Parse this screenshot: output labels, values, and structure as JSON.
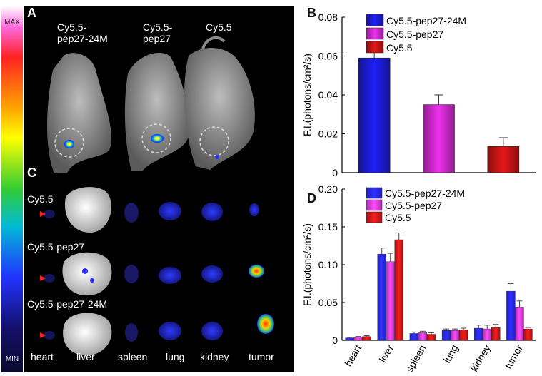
{
  "colorbar": {
    "max_label": "MAX",
    "min_label": "MIN"
  },
  "panel_letters": {
    "A": "A",
    "B": "B",
    "C": "C",
    "D": "D"
  },
  "panel_a": {
    "labels": [
      "Cy5.5-\npep27-24M",
      "Cy5.5-\npep27",
      "Cy5.5"
    ]
  },
  "panel_c": {
    "row_labels": [
      "Cy5.5",
      "Cy5.5-pep27",
      "Cy5.5-pep27-24M"
    ],
    "organ_labels": [
      "heart",
      "liver",
      "spleen",
      "lung",
      "kidney",
      "tumor"
    ]
  },
  "chart_data": [
    {
      "type": "bar",
      "panel": "B",
      "categories": [
        "Cy5.5-pep27-24M",
        "Cy5.5-pep27",
        "Cy5.5"
      ],
      "values": [
        0.059,
        0.035,
        0.0135
      ],
      "errors": [
        0.004,
        0.005,
        0.0045
      ],
      "colors": [
        "#1c1cd6",
        "#d02ad0",
        "#c81414"
      ],
      "ylabel": "F.I.(photons/cm²/s)",
      "ylim": [
        0,
        0.08
      ],
      "yticks": [
        "0",
        "0.02",
        "0.04",
        "0.06",
        "0.08"
      ],
      "legend": [
        "Cy5.5-pep27-24M",
        "Cy5.5-pep27",
        "Cy5.5"
      ],
      "legend_position": "top-left"
    },
    {
      "type": "bar",
      "panel": "D",
      "categories": [
        "heart",
        "liver",
        "spleen",
        "lung",
        "kidney",
        "tumor"
      ],
      "series": [
        {
          "name": "Cy5.5-pep27-24M",
          "color": "#2a2aff",
          "values": [
            0.003,
            0.114,
            0.009,
            0.013,
            0.016,
            0.065
          ],
          "errors": [
            0.001,
            0.008,
            0.002,
            0.002,
            0.004,
            0.01
          ]
        },
        {
          "name": "Cy5.5-pep27",
          "color": "#e040e0",
          "values": [
            0.004,
            0.104,
            0.01,
            0.013,
            0.015,
            0.044
          ],
          "errors": [
            0.001,
            0.011,
            0.002,
            0.002,
            0.005,
            0.008
          ]
        },
        {
          "name": "Cy5.5",
          "color": "#d81818",
          "values": [
            0.005,
            0.133,
            0.008,
            0.014,
            0.017,
            0.015
          ],
          "errors": [
            0.001,
            0.009,
            0.002,
            0.002,
            0.004,
            0.002
          ]
        }
      ],
      "ylabel": "F.I.(photons/cm²/s)",
      "ylim": [
        0,
        0.2
      ],
      "yticks": [
        "0",
        "0.05",
        "0.10",
        "0.15",
        "0.20"
      ],
      "legend_position": "top-left"
    }
  ]
}
